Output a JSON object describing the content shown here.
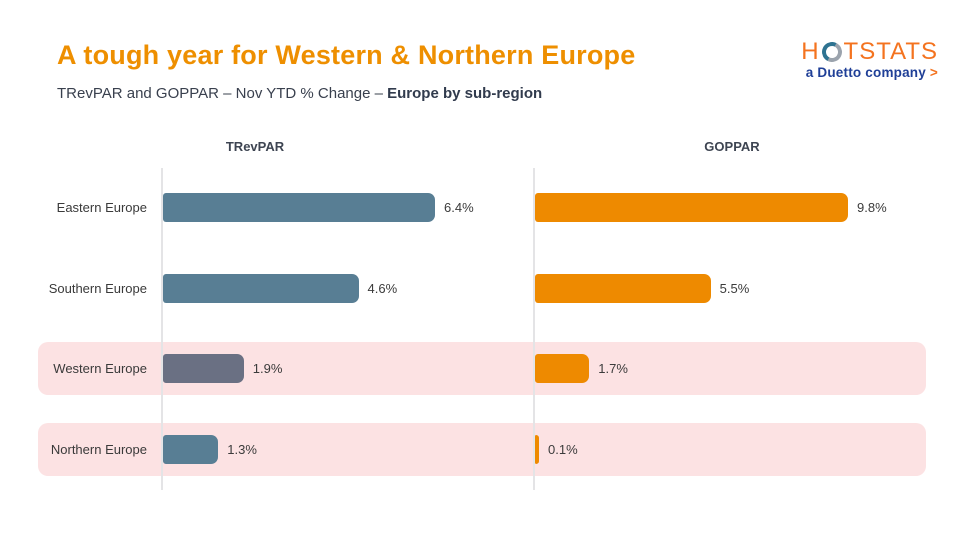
{
  "title": "A tough year for Western & Northern Europe",
  "subtitle": {
    "regular": "TRevPAR and GOPPAR – Nov YTD % Change – ",
    "bold": "Europe by sub-region"
  },
  "logo": {
    "wordmark_h": "H",
    "wordmark_rest": "TSTATS",
    "tagline": "a Duetto company",
    "chevron": ">"
  },
  "chart_data": {
    "type": "bar",
    "orientation": "horizontal",
    "title": "TRevPAR and GOPPAR – Nov YTD % Change – Europe by sub-region",
    "categories": [
      "Eastern Europe",
      "Southern Europe",
      "Western Europe",
      "Northern Europe"
    ],
    "series": [
      {
        "name": "TRevPAR",
        "values": [
          6.4,
          4.6,
          1.9,
          1.3
        ],
        "labels": [
          "6.4%",
          "4.6%",
          "1.9%",
          "1.3%"
        ],
        "color": "#587E94",
        "bar_colors": [
          "#587E94",
          "#587E94",
          "#6A7083",
          "#587E94"
        ]
      },
      {
        "name": "GOPPAR",
        "values": [
          9.8,
          5.5,
          1.7,
          0.1
        ],
        "labels": [
          "9.8%",
          "5.5%",
          "1.7%",
          "0.1%"
        ],
        "color": "#EE8A00",
        "bar_colors": [
          "#EE8A00",
          "#EE8A00",
          "#EE8A00",
          "#EE8A00"
        ]
      }
    ],
    "highlighted_categories": [
      "Western Europe",
      "Northern Europe"
    ],
    "value_labels_shown": true,
    "grid": false,
    "legend_position": "column-headers",
    "xlim": [
      0,
      10
    ]
  },
  "colors": {
    "title_orange": "#EE8F00",
    "bar_blue": "#587E94",
    "bar_blue_muted": "#6A7083",
    "bar_orange": "#EE8A00",
    "highlight_pink": "#FCE2E3",
    "axis_line": "#E4E4E6",
    "text_dark": "#3B3B3B",
    "logo_orange": "#F4731F",
    "logo_navy": "#1F3F97"
  }
}
